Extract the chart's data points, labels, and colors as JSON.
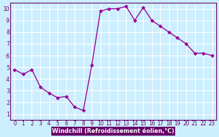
{
  "x": [
    0,
    1,
    2,
    3,
    4,
    5,
    6,
    7,
    8,
    9,
    10,
    11,
    12,
    13,
    14,
    15,
    16,
    17,
    18,
    19,
    20,
    21,
    22,
    23
  ],
  "y": [
    4.8,
    4.4,
    4.8,
    3.3,
    2.8,
    2.4,
    2.5,
    1.6,
    1.3,
    5.2,
    9.8,
    10.0,
    10.0,
    10.2,
    9.0,
    10.1,
    9.0,
    8.5,
    8.0,
    7.5,
    7.0,
    6.2,
    6.2,
    6.0
  ],
  "line_color": "#990099",
  "marker": "D",
  "marker_size": 2.5,
  "line_width": 1.0,
  "xlabel": "Windchill (Refroidissement éolien,°C)",
  "xlim": [
    0,
    23
  ],
  "ylim": [
    1,
    10
  ],
  "xticks": [
    0,
    1,
    2,
    3,
    4,
    5,
    6,
    7,
    8,
    9,
    10,
    11,
    12,
    13,
    14,
    15,
    16,
    17,
    18,
    19,
    20,
    21,
    22,
    23
  ],
  "yticks": [
    1,
    2,
    3,
    4,
    5,
    6,
    7,
    8,
    9,
    10
  ],
  "background_color": "#cceeff",
  "grid_color": "#ffffff",
  "tick_label_fontsize": 5.5,
  "xlabel_fontsize": 6.0,
  "xlabel_color": "#ffffff",
  "xlabel_bg": "#660066",
  "axis_label_color": "#660066"
}
